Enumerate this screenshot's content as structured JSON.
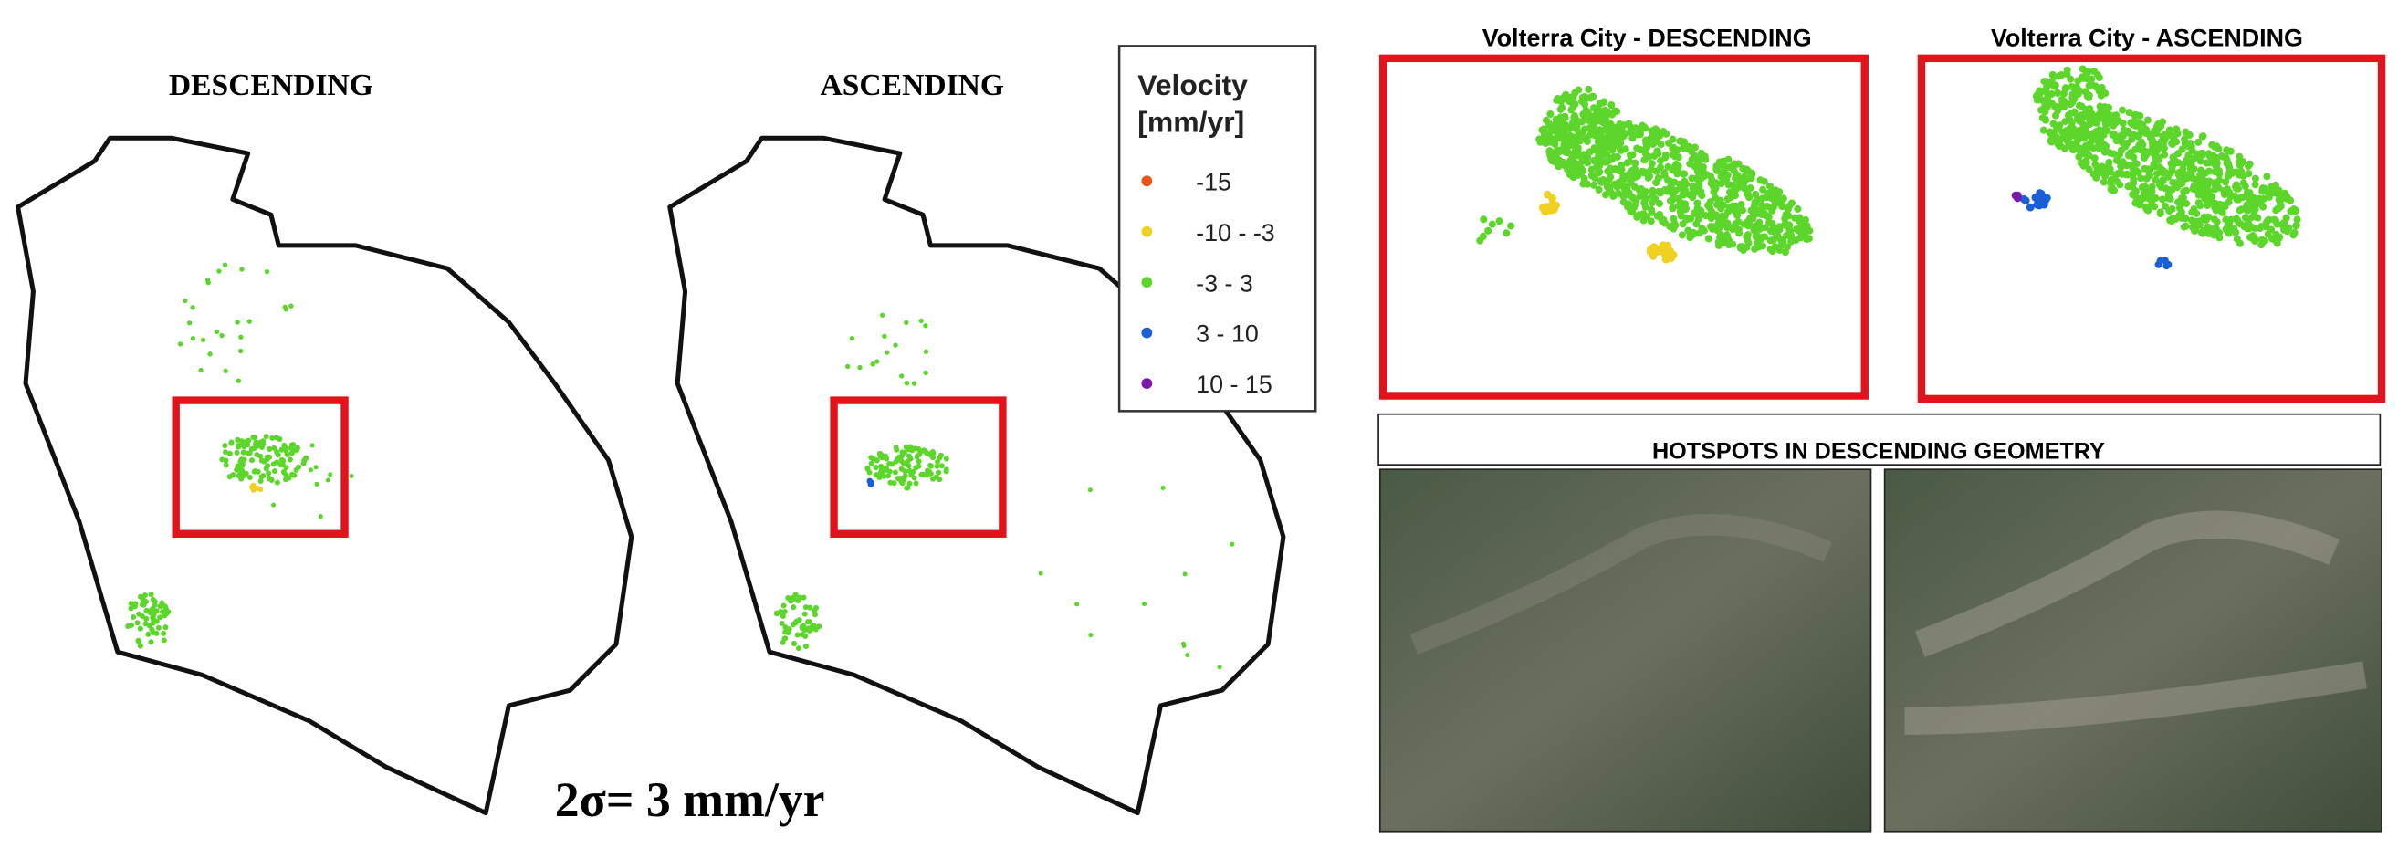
{
  "maps": {
    "descending_title": "DESCENDING",
    "ascending_title": "ASCENDING",
    "sigma_note": "2σ= 3 mm/yr"
  },
  "legend": {
    "title": [
      "Velocity",
      "[mm/yr]"
    ],
    "items": [
      {
        "label": "-15",
        "color": "#e8541a"
      },
      {
        "label": "-10 - -3",
        "color": "#f0d020"
      },
      {
        "label": "-3 - 3",
        "color": "#5cd62a"
      },
      {
        "label": "3 - 10",
        "color": "#1a5fd6"
      },
      {
        "label": "10 - 15",
        "color": "#7a1aa8"
      }
    ]
  },
  "zoom": {
    "descending_title": "Volterra City - DESCENDING",
    "ascending_title": "Volterra City - ASCENDING"
  },
  "hotspots": {
    "title": "HOTSPOTS IN DESCENDING GEOMETRY"
  }
}
